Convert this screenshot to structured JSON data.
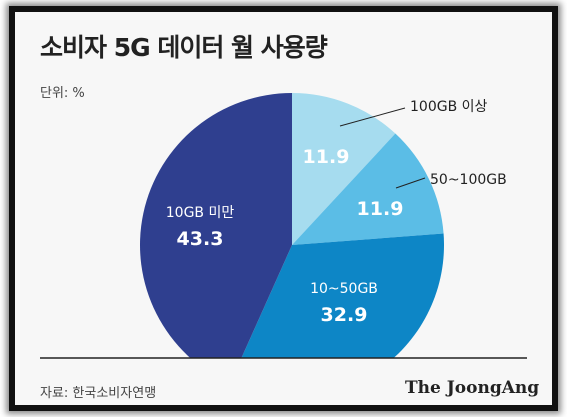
{
  "title": "소비자 5G 데이터 월 사용량",
  "unit": "단위: %",
  "source": "자료: 한국소비자연맹",
  "brand": "The JoongAng",
  "colors": {
    "slice_10gb_under": "#2f3f8f",
    "slice_10_50gb": "#0d86c6",
    "slice_50_100gb": "#5bbde6",
    "slice_100gb_over": "#a6dcef",
    "baseline": "#222222"
  },
  "chart_data": {
    "type": "pie",
    "title": "소비자 5G 데이터 월 사용량",
    "unit": "%",
    "slices": [
      {
        "label": "100GB 이상",
        "value": 11.9
      },
      {
        "label": "50~100GB",
        "value": 11.9
      },
      {
        "label": "10~50GB",
        "value": 32.9
      },
      {
        "label": "10GB 미만",
        "value": 43.3
      }
    ]
  }
}
